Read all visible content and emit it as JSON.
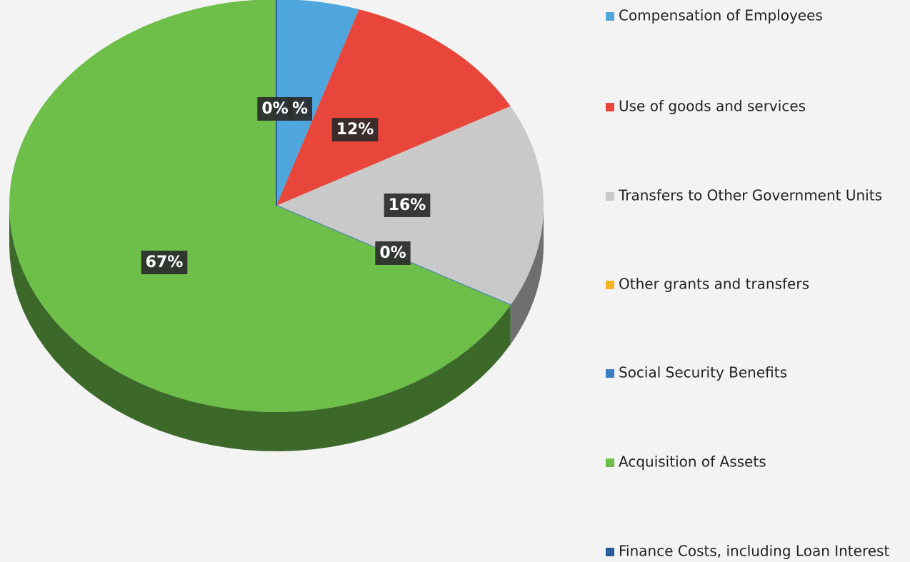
{
  "chart_data": {
    "type": "pie3d",
    "categories": [
      "Compensation of Employees",
      "Use of goods and services",
      "Transfers to Other Government Units",
      "Other grants and transfers",
      "Social Security Benefits",
      "Acquisition of Assets",
      "Finance Costs, including Loan Interest"
    ],
    "values": [
      5,
      12,
      16,
      0,
      0,
      67,
      0
    ],
    "value_labels": [
      "%",
      "12%",
      "16%",
      "0%",
      null,
      "67%",
      "0%"
    ],
    "colors": [
      "#4ea6dc",
      "#e8463a",
      "#c9c9c9",
      "#f5b323",
      "#3a7fc6",
      "#6dbf4a",
      "#2a5d9c"
    ],
    "legend": "right"
  }
}
